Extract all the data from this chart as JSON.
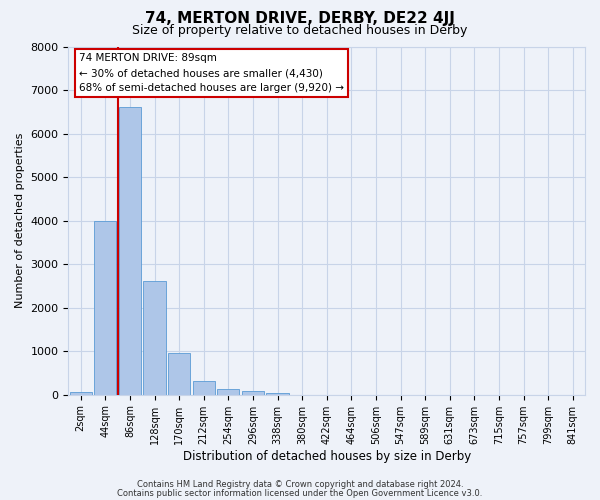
{
  "title": "74, MERTON DRIVE, DERBY, DE22 4JJ",
  "subtitle": "Size of property relative to detached houses in Derby",
  "xlabel": "Distribution of detached houses by size in Derby",
  "ylabel": "Number of detached properties",
  "bin_labels": [
    "2sqm",
    "44sqm",
    "86sqm",
    "128sqm",
    "170sqm",
    "212sqm",
    "254sqm",
    "296sqm",
    "338sqm",
    "380sqm",
    "422sqm",
    "464sqm",
    "506sqm",
    "547sqm",
    "589sqm",
    "631sqm",
    "673sqm",
    "715sqm",
    "757sqm",
    "799sqm",
    "841sqm"
  ],
  "bar_heights": [
    60,
    4000,
    6600,
    2620,
    960,
    320,
    140,
    80,
    40,
    0,
    0,
    0,
    0,
    0,
    0,
    0,
    0,
    0,
    0,
    0,
    0
  ],
  "bar_color": "#aec6e8",
  "bar_edge_color": "#5b9bd5",
  "vline_color": "#cc0000",
  "ylim": [
    0,
    8000
  ],
  "yticks": [
    0,
    1000,
    2000,
    3000,
    4000,
    5000,
    6000,
    7000,
    8000
  ],
  "annotation_text": "74 MERTON DRIVE: 89sqm\n← 30% of detached houses are smaller (4,430)\n68% of semi-detached houses are larger (9,920) →",
  "annotation_box_color": "#ffffff",
  "annotation_box_edge": "#cc0000",
  "footer_line1": "Contains HM Land Registry data © Crown copyright and database right 2024.",
  "footer_line2": "Contains public sector information licensed under the Open Government Licence v3.0.",
  "background_color": "#eef2f9",
  "grid_color": "#c8d4e8",
  "title_fontsize": 11,
  "subtitle_fontsize": 9
}
